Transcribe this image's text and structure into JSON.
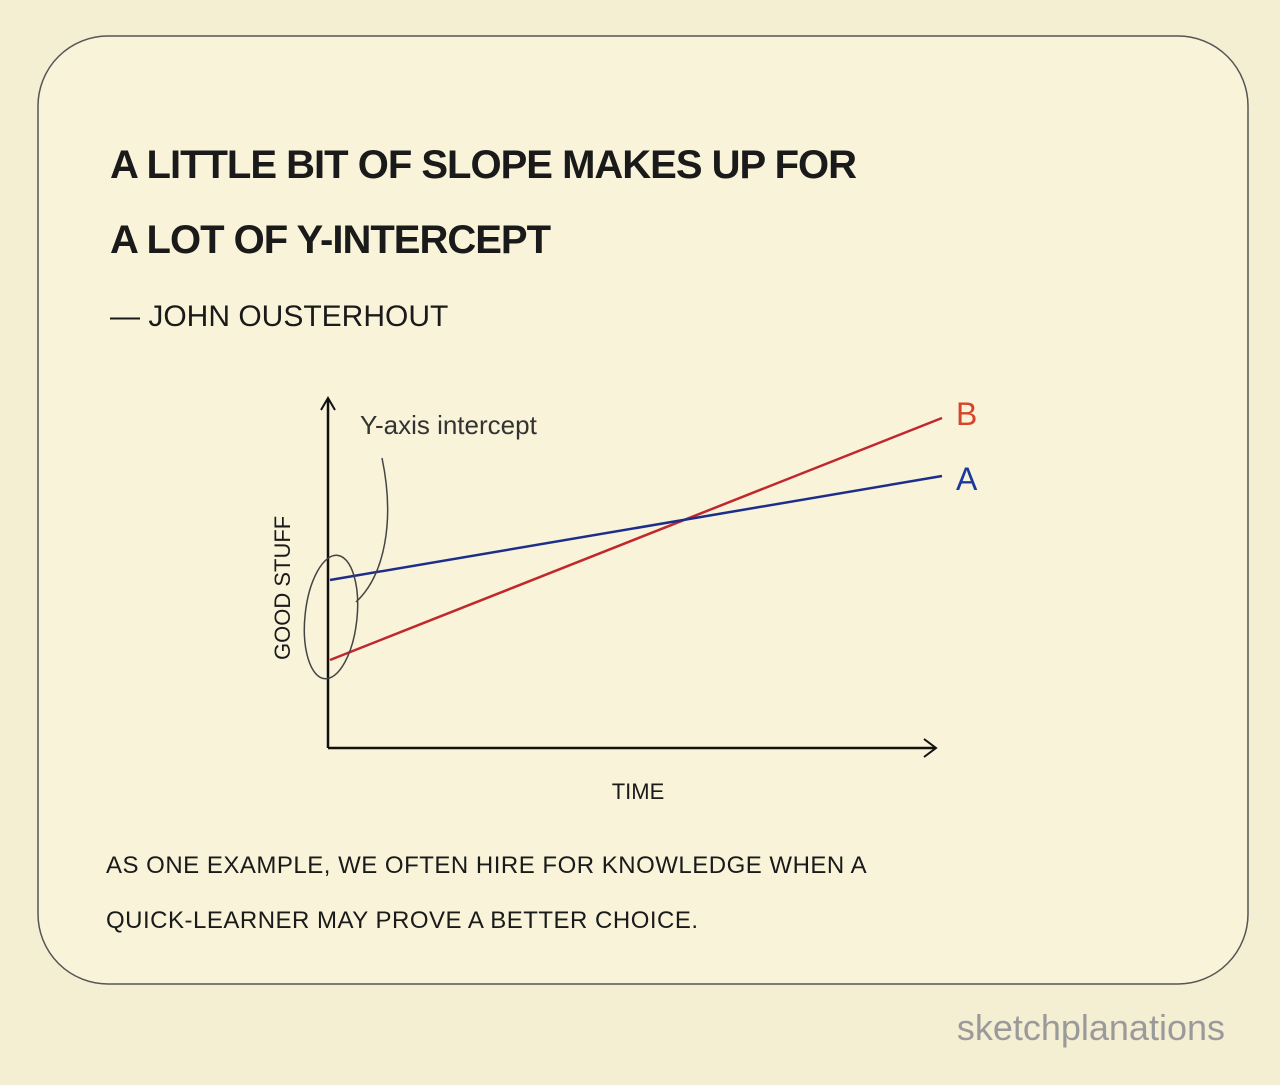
{
  "quote": {
    "lines": [
      "A LITTLE BIT OF SLOPE MAKES UP FOR",
      "A LOT OF Y-INTERCEPT"
    ],
    "attribution": "— JOHN OUSTERHOUT"
  },
  "diagram": {
    "y_axis_label": "GOOD STUFF",
    "x_axis_label": "TIME",
    "annotation": "Y-axis intercept",
    "lines": [
      {
        "label": "B"
      },
      {
        "label": "A"
      }
    ]
  },
  "caption": {
    "lines": [
      "AS ONE EXAMPLE, WE OFTEN HIRE FOR KNOWLEDGE WHEN A",
      "QUICK-LEARNER MAY PROVE A BETTER CHOICE."
    ]
  },
  "watermark": "sketchplanations"
}
